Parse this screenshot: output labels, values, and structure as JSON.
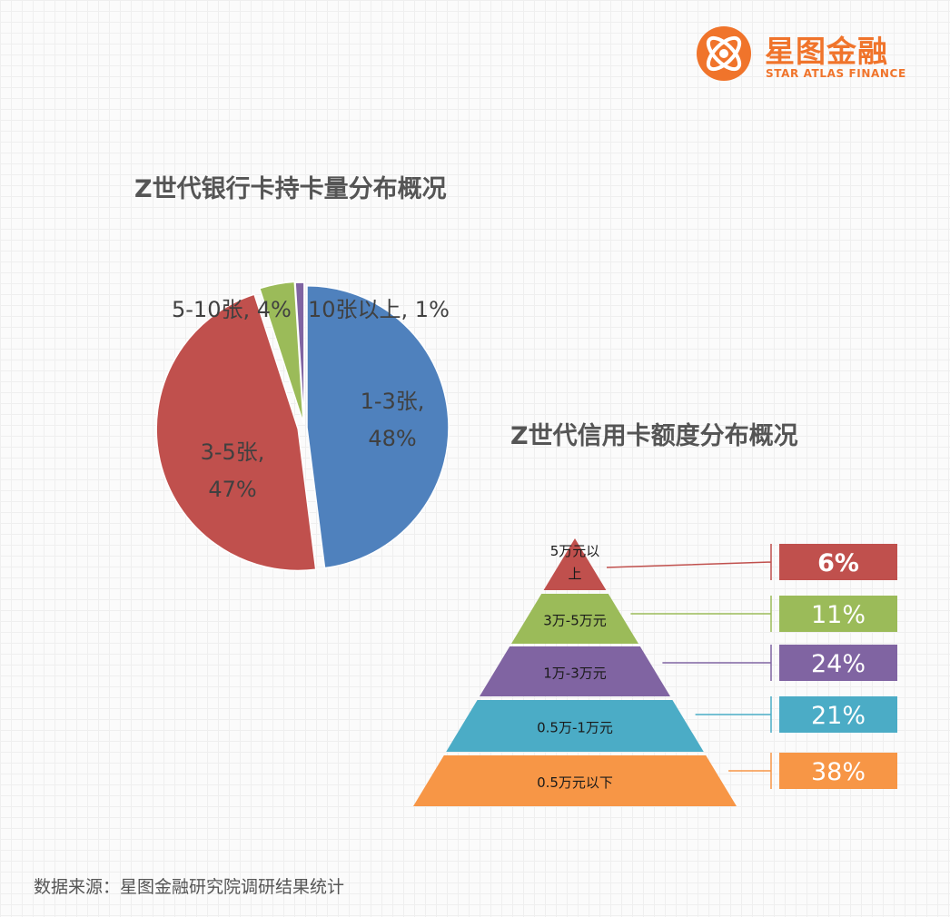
{
  "brand": {
    "name": "星图金融",
    "name_en": "STAR ATLAS FINANCE",
    "color": "#f0742b"
  },
  "source_note": "数据来源：星图金融研究院调研结果统计",
  "chart_data": [
    {
      "type": "pie",
      "title": "Z世代银行卡持卡量分布概况",
      "slices": [
        {
          "name": "1-3张",
          "value": 48,
          "color": "#4f81bd"
        },
        {
          "name": "3-5张",
          "value": 47,
          "color": "#c0504d"
        },
        {
          "name": "5-10张",
          "value": 4,
          "color": "#9bbb59"
        },
        {
          "name": "10张以上",
          "value": 1,
          "color": "#8064a2"
        }
      ]
    },
    {
      "type": "pyramid",
      "title": "Z世代信用卡额度分布概况",
      "levels": [
        {
          "name": "5万元以上",
          "value": 6,
          "color": "#c0504d"
        },
        {
          "name": "3万-5万元",
          "value": 11,
          "color": "#9bbb59"
        },
        {
          "name": "1万-3万元",
          "value": 24,
          "color": "#8064a2"
        },
        {
          "name": "0.5万-1万元",
          "value": 21,
          "color": "#4bacc6"
        },
        {
          "name": "0.5万元以下",
          "value": 38,
          "color": "#f79646"
        }
      ]
    }
  ]
}
